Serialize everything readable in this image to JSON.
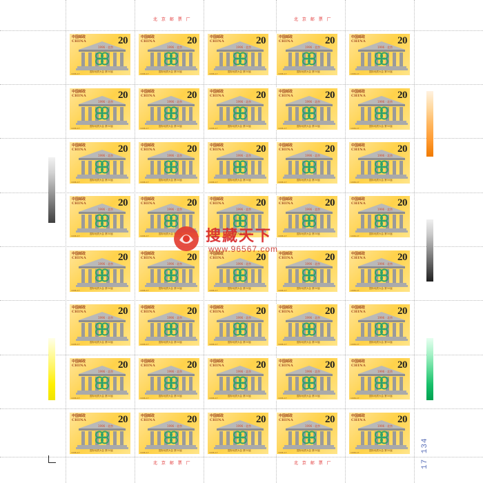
{
  "sheet": {
    "stamp": {
      "country_cn": "中国邮政",
      "country_en": "CHINA",
      "face_value": "20",
      "year_place": "1996 · 北京",
      "caption": "国际地质大会 第30届",
      "code": "1996-17"
    },
    "rows": 8,
    "cols": 5,
    "margin_top_left": "北 京 邮 票 厂",
    "margin_top_right": "北 京 邮 票 厂",
    "margin_bottom_left": "北 京 邮 票 厂",
    "margin_bottom_right": "北 京 邮 票 厂",
    "sheet_number": "17 134",
    "watermark": {
      "title": "搜藏天下",
      "url": "www.96567.com"
    },
    "colors": {
      "stamp_yellow": "#ffd24a",
      "pillar_gray": "#9a9a9a",
      "emblem_green": "#2ea36b",
      "accent_red": "#d8282b"
    }
  }
}
